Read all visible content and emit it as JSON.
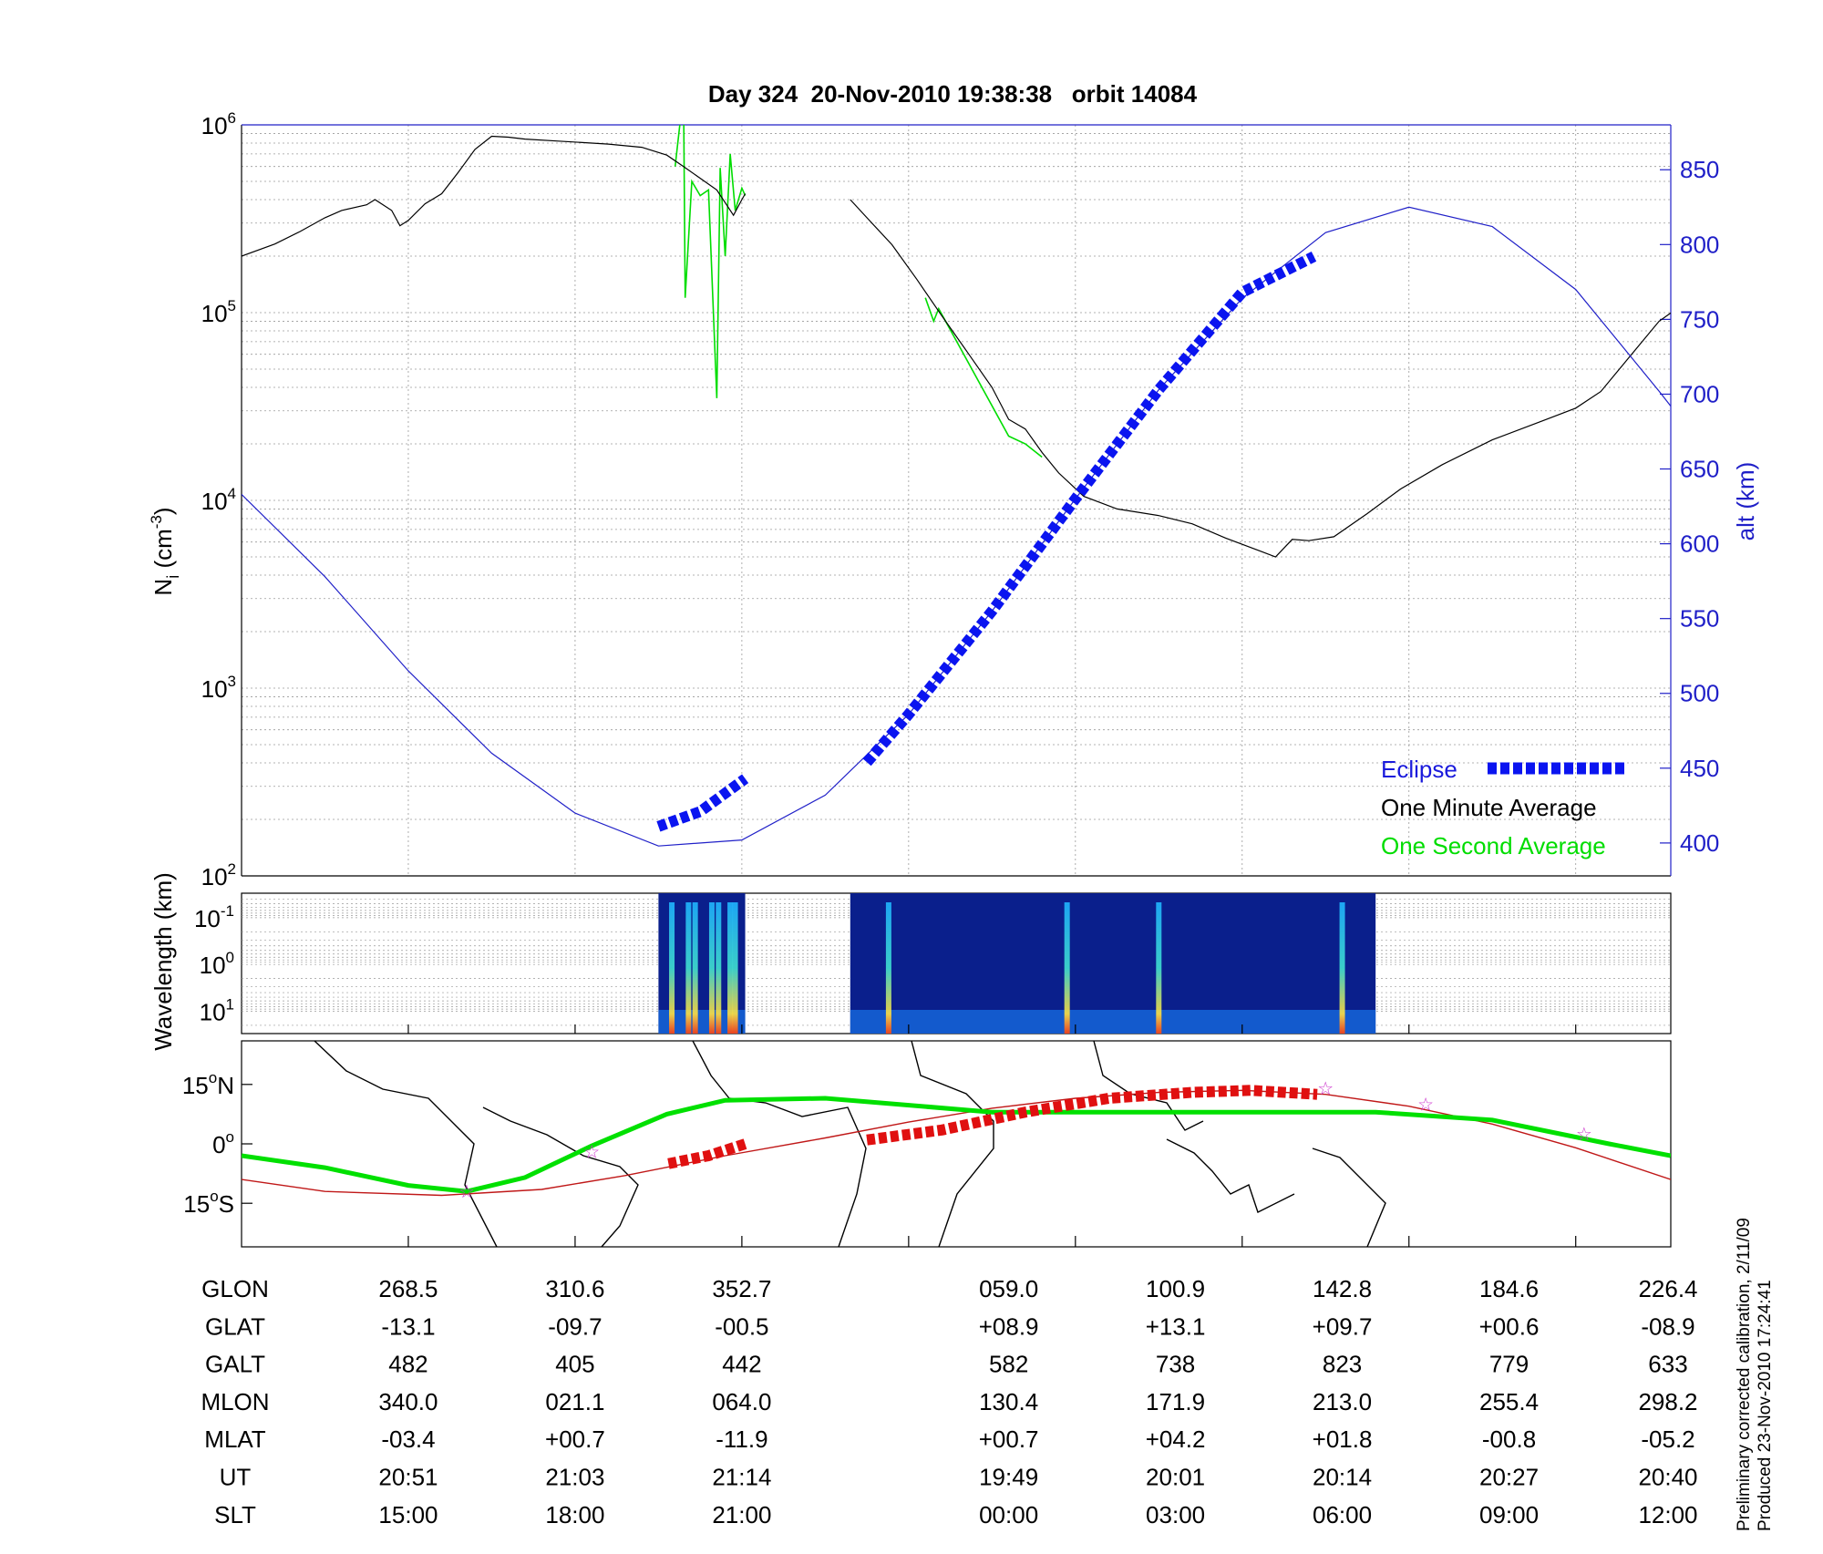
{
  "title": "Day 324  20-Nov-2010 19:38:38   orbit 14084",
  "colors": {
    "axis_blue": "#2020c8",
    "one_minute": "#000000",
    "one_second": "#00dd00",
    "eclipse": "#0a14f0",
    "eclipse_map": "#e01010",
    "ground_track_red": "#c01818",
    "star": "#cc33cc"
  },
  "legend": {
    "eclipse": "Eclipse",
    "one_minute": "One Minute Average",
    "one_second": "One Second Average"
  },
  "footnote": {
    "line1": "Preliminary corrected calibration, 2/11/09",
    "line2": "Produced 23-Nov-2010 17:24:41"
  },
  "chart_data": [
    {
      "type": "line",
      "title": "Day 324  20-Nov-2010 19:38:38   orbit 14084",
      "x_ticks": [
        1,
        2,
        3,
        4,
        5,
        6,
        7,
        8
      ],
      "x_range": [
        0,
        8.57
      ],
      "y_left": {
        "label": "N",
        "label_sub": "i",
        "label_unit": "(cm",
        "label_unit_exp": "-3",
        "label_unit_close": ")",
        "scale": "log",
        "range": [
          100,
          1000000
        ],
        "ticks": [
          {
            "base": "10",
            "exp": "2"
          },
          {
            "base": "10",
            "exp": "3"
          },
          {
            "base": "10",
            "exp": "4"
          },
          {
            "base": "10",
            "exp": "5"
          },
          {
            "base": "10",
            "exp": "6"
          }
        ]
      },
      "y_right": {
        "label": "alt (km)",
        "range": [
          378,
          880
        ],
        "ticks": [
          "400",
          "450",
          "500",
          "550",
          "600",
          "650",
          "700",
          "750",
          "800",
          "850"
        ]
      },
      "grid": true,
      "series": [
        {
          "name": "One Minute Average",
          "axis": "left",
          "segments": [
            [
              [
                0,
                200000
              ],
              [
                0.2,
                232000
              ],
              [
                0.35,
                270000
              ],
              [
                0.5,
                320000
              ],
              [
                0.6,
                350000
              ],
              [
                0.75,
                375000
              ],
              [
                0.8,
                400000
              ],
              [
                0.9,
                350000
              ],
              [
                0.95,
                290000
              ],
              [
                1.0,
                310000
              ],
              [
                1.1,
                380000
              ],
              [
                1.2,
                430000
              ],
              [
                1.3,
                560000
              ],
              [
                1.4,
                740000
              ],
              [
                1.5,
                870000
              ],
              [
                1.6,
                860000
              ],
              [
                1.7,
                840000
              ],
              [
                1.9,
                820000
              ],
              [
                2.2,
                790000
              ],
              [
                2.4,
                760000
              ],
              [
                2.55,
                690000
              ],
              [
                2.65,
                600000
              ],
              [
                2.85,
                450000
              ],
              [
                2.95,
                330000
              ],
              [
                3.0,
                400000
              ],
              [
                3.02,
                430000
              ]
            ],
            [
              [
                3.65,
                400000
              ],
              [
                3.75,
                320000
              ],
              [
                3.9,
                230000
              ],
              [
                4.05,
                150000
              ],
              [
                4.2,
                96000
              ],
              [
                4.35,
                62000
              ],
              [
                4.5,
                40000
              ],
              [
                4.6,
                27000
              ],
              [
                4.7,
                24000
              ],
              [
                4.8,
                18000
              ],
              [
                4.9,
                14000
              ],
              [
                5.05,
                10500
              ],
              [
                5.25,
                9000
              ],
              [
                5.5,
                8300
              ],
              [
                5.7,
                7500
              ],
              [
                5.9,
                6300
              ],
              [
                6.1,
                5400
              ],
              [
                6.2,
                5000
              ],
              [
                6.3,
                6200
              ],
              [
                6.4,
                6100
              ],
              [
                6.55,
                6400
              ],
              [
                6.75,
                8500
              ],
              [
                6.95,
                11500
              ],
              [
                7.2,
                15500
              ],
              [
                7.5,
                21000
              ],
              [
                7.8,
                26500
              ],
              [
                8.0,
                31000
              ],
              [
                8.15,
                38000
              ],
              [
                8.3,
                55000
              ],
              [
                8.5,
                90000
              ],
              [
                8.7,
                120000
              ],
              [
                8.85,
                160000
              ],
              [
                8.95,
                172000
              ],
              [
                9.05,
                180000
              ],
              [
                9.12,
                200000
              ]
            ]
          ]
        },
        {
          "name": "One Second Average",
          "axis": "left",
          "segments": [
            [
              [
                2.6,
                600000
              ],
              [
                2.65,
                1500000
              ],
              [
                2.66,
                120000
              ],
              [
                2.7,
                500000
              ],
              [
                2.75,
                420000
              ],
              [
                2.8,
                450000
              ],
              [
                2.85,
                35000
              ],
              [
                2.87,
                590000
              ],
              [
                2.9,
                200000
              ],
              [
                2.93,
                700000
              ],
              [
                2.96,
                350000
              ],
              [
                3.0,
                460000
              ],
              [
                3.02,
                420000
              ]
            ],
            [
              [
                4.1,
                120000
              ],
              [
                4.15,
                90000
              ],
              [
                4.18,
                105000
              ],
              [
                4.6,
                22000
              ],
              [
                4.7,
                20000
              ],
              [
                4.8,
                17000
              ]
            ]
          ]
        },
        {
          "name": "alt (km)",
          "axis": "right",
          "x": [
            0,
            0.5,
            1.0,
            1.5,
            2.0,
            2.5,
            3.0,
            3.5,
            4.0,
            4.5,
            5.0,
            5.5,
            6.0,
            6.5,
            7.0,
            7.5,
            8.0,
            8.5,
            8.57
          ],
          "values": [
            633,
            578,
            515,
            460,
            420,
            398,
            402,
            432,
            486,
            555,
            630,
            703,
            764,
            808,
            825,
            812,
            770,
            702,
            692
          ]
        },
        {
          "name": "Eclipse",
          "axis": "right",
          "segments": [
            [
              [
                2.5,
                411
              ],
              [
                2.75,
                421
              ],
              [
                3.02,
                443
              ]
            ],
            [
              [
                3.75,
                454
              ],
              [
                4.0,
                486
              ],
              [
                4.5,
                555
              ],
              [
                5.0,
                630
              ],
              [
                5.5,
                703
              ],
              [
                6.0,
                768
              ],
              [
                6.43,
                792
              ]
            ]
          ]
        }
      ]
    },
    {
      "type": "heatmap",
      "y_label": "Wavelength (km)",
      "y_scale": "log",
      "y_range": [
        0.03,
        30
      ],
      "y_ticks": [
        {
          "base": "10",
          "exp": "-1"
        },
        {
          "base": "10",
          "exp": "0"
        },
        {
          "base": "10",
          "exp": "1"
        }
      ],
      "segments_x": [
        [
          2.5,
          3.02
        ],
        [
          3.65,
          6.8
        ]
      ],
      "bright_bursts_x": [
        2.58,
        2.68,
        2.72,
        2.82,
        2.86,
        2.93,
        2.96,
        3.88,
        4.95,
        5.5,
        6.6
      ]
    },
    {
      "type": "line",
      "subtype": "map",
      "lat_range": [
        -26,
        26
      ],
      "y_ticks": [
        {
          "label": "15",
          "deg": "o",
          "hemi": "N"
        },
        {
          "label": "0",
          "deg": "o",
          "hemi": ""
        },
        {
          "label": "15",
          "deg": "o",
          "hemi": "S"
        }
      ],
      "series": [
        {
          "name": "ground-track-1",
          "x": [
            0,
            0.5,
            1.0,
            1.35,
            1.7,
            2.1,
            2.55,
            2.9,
            3.5,
            4.5,
            5.5,
            6.2,
            6.8,
            7.5,
            8.2,
            8.57
          ],
          "values": [
            -3,
            -6,
            -10.5,
            -12,
            -8.5,
            -0.5,
            7.5,
            11,
            11.5,
            8,
            8,
            8,
            8,
            6,
            0,
            -3
          ]
        },
        {
          "name": "ground-track-2",
          "x": [
            0,
            0.5,
            1.2,
            1.8,
            2.3,
            2.9,
            3.5,
            4.0,
            4.5,
            5.0,
            5.5,
            6.0,
            6.5,
            7.0,
            7.5,
            8.0,
            8.57
          ],
          "values": [
            -9,
            -12,
            -13,
            -11.5,
            -8,
            -3,
            1.5,
            5.5,
            9,
            11.5,
            13,
            13.5,
            12.5,
            9.5,
            5,
            -1,
            -9
          ]
        },
        {
          "name": "eclipse-map",
          "segments": [
            [
              [
                2.56,
                -5
              ],
              [
                2.8,
                -3
              ],
              [
                3.02,
                0
              ]
            ],
            [
              [
                3.75,
                1
              ],
              [
                4.2,
                3.5
              ],
              [
                4.7,
                8
              ],
              [
                5.2,
                11.5
              ],
              [
                5.7,
                13
              ],
              [
                6.05,
                13.5
              ],
              [
                6.45,
                12.5
              ]
            ]
          ]
        }
      ],
      "stars": [
        [
          1.35,
          -12
        ],
        [
          2.1,
          -2
        ],
        [
          6.5,
          14
        ],
        [
          7.1,
          10
        ],
        [
          8.05,
          2.5
        ]
      ]
    },
    {
      "type": "table",
      "rows": [
        {
          "label": "GLON",
          "values": [
            "268.5",
            "310.6",
            "352.7",
            "059.0",
            "100.9",
            "142.8",
            "184.6",
            "226.4"
          ]
        },
        {
          "label": "GLAT",
          "values": [
            "-13.1",
            "-09.7",
            "-00.5",
            "+08.9",
            "+13.1",
            "+09.7",
            "+00.6",
            "-08.9"
          ]
        },
        {
          "label": "GALT",
          "values": [
            "482",
            "405",
            "442",
            "582",
            "738",
            "823",
            "779",
            "633"
          ]
        },
        {
          "label": "MLON",
          "values": [
            "340.0",
            "021.1",
            "064.0",
            "130.4",
            "171.9",
            "213.0",
            "255.4",
            "298.2"
          ]
        },
        {
          "label": "MLAT",
          "values": [
            "-03.4",
            "+00.7",
            "-11.9",
            "+00.7",
            "+04.2",
            "+01.8",
            "-00.8",
            "-05.2"
          ]
        },
        {
          "label": "UT",
          "values": [
            "20:51",
            "21:03",
            "21:14",
            "19:49",
            "20:01",
            "20:14",
            "20:27",
            "20:40"
          ]
        },
        {
          "label": "SLT",
          "values": [
            "15:00",
            "18:00",
            "21:00",
            "00:00",
            "03:00",
            "06:00",
            "09:00",
            "12:00"
          ]
        }
      ]
    }
  ]
}
